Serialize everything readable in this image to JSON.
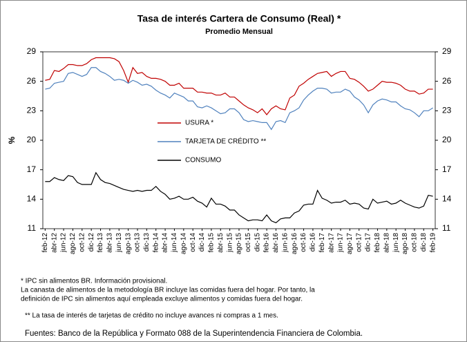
{
  "chart_data": {
    "type": "line",
    "title": "Tasa de interés Cartera de Consumo (Real) *",
    "subtitle": "Promedio  Mensual",
    "ylabel": "%",
    "categories": [
      "feb-12",
      null,
      "abr-12",
      null,
      "jun-12",
      null,
      "ago-12",
      null,
      "oct-12",
      null,
      "dic-12",
      null,
      "feb-13",
      null,
      "abr-13",
      null,
      "jun-13",
      null,
      "ago-13",
      null,
      "oct-13",
      null,
      "dic-13",
      null,
      "feb-14",
      null,
      "abr-14",
      null,
      "jun-14",
      null,
      "ago-14",
      null,
      "oct-14",
      null,
      "dic-14",
      null,
      "feb-15",
      null,
      "abr-15",
      null,
      "jun-15",
      null,
      "ago-15",
      null,
      "oct-15",
      null,
      "dic-15",
      null,
      "feb-16",
      null,
      "abr-16",
      null,
      "jun-16",
      null,
      "ago-16",
      null,
      "oct-16",
      null,
      "dic-16",
      null,
      "feb-17",
      null,
      "abr-17",
      null,
      "jun-17",
      null,
      "ago-17",
      null,
      "oct-17",
      null,
      "dic-17",
      null,
      "feb-18",
      null,
      "abr-18",
      null,
      "jun-18",
      null,
      "ago-18",
      null,
      "oct-18",
      null,
      "dic-18",
      null,
      "feb-19"
    ],
    "series": [
      {
        "name": "USURA *",
        "color": "#c00000",
        "values": [
          26.1,
          26.2,
          27.1,
          27.0,
          27.3,
          27.7,
          27.7,
          27.6,
          27.6,
          27.8,
          28.2,
          28.4,
          28.4,
          28.4,
          28.4,
          28.3,
          28.0,
          27.1,
          25.9,
          27.4,
          26.8,
          26.9,
          26.5,
          26.3,
          26.3,
          26.2,
          26.0,
          25.6,
          25.6,
          25.8,
          25.3,
          25.3,
          25.3,
          24.9,
          24.9,
          24.8,
          24.8,
          24.6,
          24.6,
          24.8,
          24.4,
          24.4,
          24.0,
          23.6,
          23.3,
          23.1,
          22.8,
          23.2,
          22.6,
          23.2,
          23.5,
          23.2,
          23.1,
          24.3,
          24.6,
          25.5,
          25.8,
          26.2,
          26.5,
          26.8,
          26.9,
          27.0,
          26.5,
          26.8,
          27.0,
          27.0,
          26.3,
          26.2,
          25.9,
          25.5,
          25.0,
          25.2,
          25.6,
          26.0,
          25.9,
          25.9,
          25.8,
          25.6,
          25.2,
          25.0,
          25.0,
          24.7,
          24.8,
          25.2,
          25.2
        ]
      },
      {
        "name": "TARJETA DE CRÉDITO **",
        "color": "#4f81bd",
        "values": [
          25.2,
          25.3,
          25.8,
          25.9,
          26.0,
          26.8,
          26.9,
          26.7,
          26.5,
          26.7,
          27.4,
          27.4,
          27.0,
          26.8,
          26.5,
          26.1,
          26.2,
          26.1,
          25.8,
          26.1,
          25.9,
          25.6,
          25.7,
          25.5,
          25.1,
          24.8,
          24.6,
          24.3,
          24.8,
          24.6,
          24.4,
          24.0,
          24.0,
          23.4,
          23.3,
          23.5,
          23.3,
          23.0,
          22.7,
          22.8,
          23.2,
          23.2,
          22.8,
          22.1,
          21.9,
          22.0,
          21.9,
          21.8,
          21.8,
          21.1,
          21.9,
          22.0,
          21.8,
          22.8,
          23.0,
          23.3,
          24.1,
          24.6,
          25.0,
          25.3,
          25.3,
          25.2,
          24.8,
          24.9,
          24.9,
          25.2,
          25.0,
          24.4,
          24.1,
          23.6,
          22.8,
          23.6,
          24.0,
          24.2,
          24.1,
          23.9,
          23.9,
          23.5,
          23.2,
          23.1,
          22.8,
          22.4,
          23.0,
          23.0,
          23.3
        ]
      },
      {
        "name": "CONSUMO",
        "color": "#000000",
        "values": [
          15.8,
          15.8,
          16.2,
          16.0,
          15.9,
          16.4,
          16.3,
          15.7,
          15.5,
          15.5,
          15.5,
          16.7,
          16.0,
          15.7,
          15.6,
          15.4,
          15.2,
          15.0,
          14.9,
          14.8,
          14.9,
          14.8,
          14.9,
          14.9,
          15.3,
          14.8,
          14.5,
          14.0,
          14.1,
          14.3,
          14.0,
          14.0,
          14.2,
          13.8,
          13.6,
          13.2,
          14.1,
          13.5,
          13.5,
          13.3,
          12.9,
          12.9,
          12.4,
          12.1,
          11.8,
          11.9,
          11.9,
          11.8,
          12.4,
          11.8,
          11.6,
          12.0,
          12.1,
          12.1,
          12.6,
          12.8,
          13.4,
          13.5,
          13.5,
          14.9,
          14.1,
          13.9,
          13.6,
          13.7,
          13.7,
          13.9,
          13.5,
          13.6,
          13.5,
          13.1,
          13.0,
          14.0,
          13.6,
          13.7,
          13.8,
          13.5,
          13.6,
          13.9,
          13.6,
          13.4,
          13.2,
          13.1,
          13.3,
          14.4,
          14.3
        ]
      }
    ],
    "ylim": [
      11,
      29
    ],
    "yticks": [
      11,
      14,
      17,
      20,
      23,
      26,
      29
    ],
    "y2lim": [
      11,
      29
    ],
    "y2ticks": [
      11,
      14,
      17,
      20,
      23,
      26,
      29
    ],
    "notes": [
      "* IPC sin alimentos BR.  Información provisional.",
      "La canasta de alimentos de la metodología BR incluye las comidas fuera del hogar. Por tanto, la",
      "definición de IPC sin alimentos aquí empleada excluye alimentos y comidas fuera del hogar.",
      "** La tasa de interés de tarjetas de crédito no incluye avances ni compras a 1 mes.",
      "Fuentes: Banco de la República y Formato 088 de la Superintendencia Financiera de Colombia."
    ]
  }
}
